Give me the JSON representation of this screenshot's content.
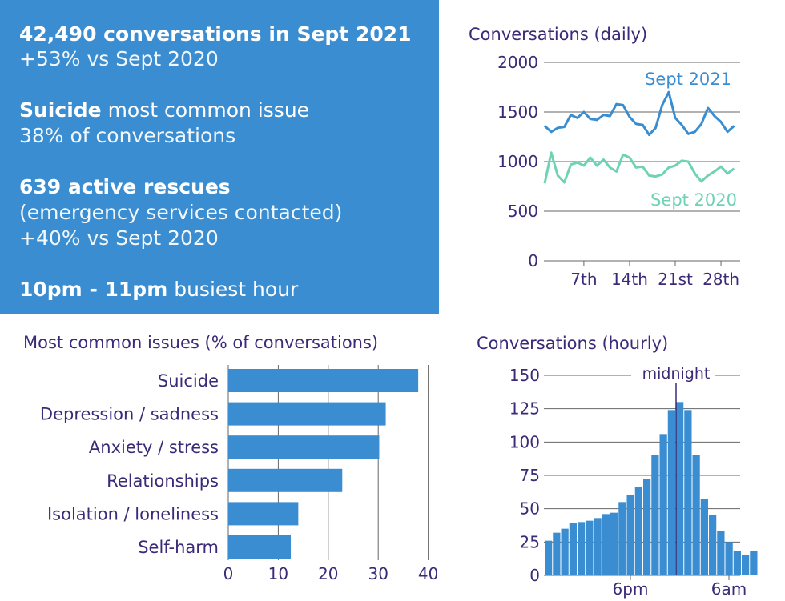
{
  "summary": {
    "conversations": {
      "bold": "42,490 conversations in Sept 2021",
      "sub": "+53% vs Sept 2020"
    },
    "issue": {
      "bold": "Suicide",
      "rest": " most common issue",
      "sub": "38% of conversations"
    },
    "rescues": {
      "bold": "639 active rescues",
      "sub1": "(emergency services contacted)",
      "sub2": "+40% vs Sept 2020"
    },
    "busiest": {
      "bold": "10pm - 11pm",
      "rest": " busiest hour"
    }
  },
  "colors": {
    "panel": "#3a8dd0",
    "bar": "#3a8dd0",
    "line2021": "#3a8dd0",
    "line2020": "#6ed3b4",
    "text": "#3b2a78",
    "grid": "#666666"
  },
  "chart_data": [
    {
      "type": "line",
      "title": "Conversations (daily)",
      "ylim": [
        0,
        2000
      ],
      "yticks": [
        "2000",
        "1500",
        "1000",
        "500",
        "0"
      ],
      "ytick_values": [
        2000,
        1500,
        1000,
        500,
        0
      ],
      "xticks": [
        "7th",
        "14th",
        "21st",
        "28th"
      ],
      "xtick_values": [
        7,
        14,
        21,
        28
      ],
      "x": [
        1,
        2,
        3,
        4,
        5,
        6,
        7,
        8,
        9,
        10,
        11,
        12,
        13,
        14,
        15,
        16,
        17,
        18,
        19,
        20,
        21,
        22,
        23,
        24,
        25,
        26,
        27,
        28,
        29,
        30
      ],
      "series": [
        {
          "name": "Sept 2021",
          "values": [
            1360,
            1300,
            1340,
            1350,
            1470,
            1440,
            1500,
            1430,
            1420,
            1470,
            1460,
            1580,
            1570,
            1450,
            1380,
            1370,
            1270,
            1340,
            1570,
            1700,
            1440,
            1370,
            1280,
            1300,
            1380,
            1540,
            1460,
            1400,
            1300,
            1360
          ]
        },
        {
          "name": "Sept 2020",
          "values": [
            780,
            1090,
            860,
            790,
            970,
            990,
            960,
            1040,
            960,
            1020,
            940,
            900,
            1070,
            1040,
            940,
            950,
            860,
            850,
            870,
            940,
            960,
            1010,
            1000,
            880,
            800,
            860,
            900,
            950,
            880,
            930
          ]
        }
      ]
    },
    {
      "type": "bar",
      "title": "Most common issues (% of conversations)",
      "categories": [
        "Suicide",
        "Depression / sadness",
        "Anxiety / stress",
        "Relationships",
        "Isolation / loneliness",
        "Self-harm"
      ],
      "values": [
        38,
        31.5,
        30.2,
        22.8,
        14,
        12.5
      ],
      "xlim": [
        0,
        40
      ],
      "xticks": [
        "0",
        "10",
        "20",
        "30",
        "40"
      ],
      "xtick_values": [
        0,
        10,
        20,
        30,
        40
      ]
    },
    {
      "type": "bar",
      "title": "Conversations (hourly)",
      "ylim": [
        0,
        150
      ],
      "yticks": [
        "150",
        "125",
        "100",
        "75",
        "50",
        "25",
        "0"
      ],
      "ytick_values": [
        150,
        125,
        100,
        75,
        50,
        25,
        0
      ],
      "xticks": [
        "6pm",
        "6am"
      ],
      "annotation": "midnight",
      "values": [
        26,
        32,
        35,
        39,
        40,
        41,
        43,
        46,
        47,
        55,
        60,
        66,
        72,
        90,
        106,
        124,
        130,
        124,
        90,
        57,
        45,
        33,
        25,
        18,
        15,
        18
      ]
    }
  ]
}
